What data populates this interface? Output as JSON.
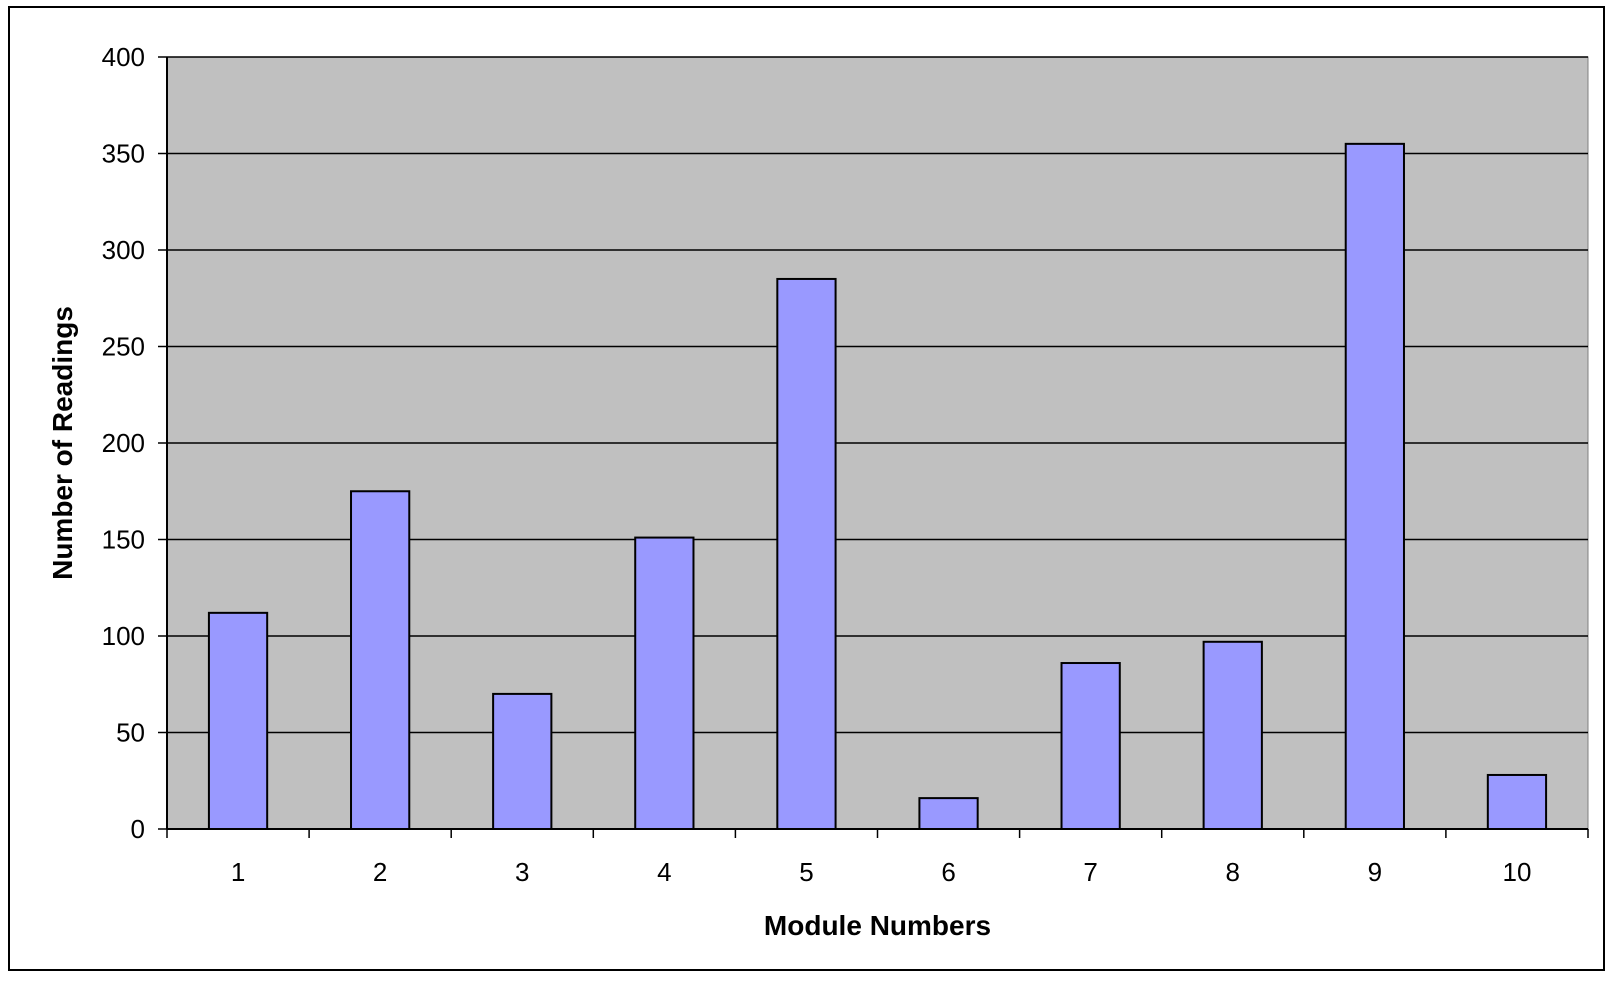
{
  "chart_data": {
    "type": "bar",
    "categories": [
      "1",
      "2",
      "3",
      "4",
      "5",
      "6",
      "7",
      "8",
      "9",
      "10"
    ],
    "values": [
      112,
      175,
      70,
      151,
      285,
      16,
      86,
      97,
      355,
      28
    ],
    "title": "",
    "xlabel": "Module Numbers",
    "ylabel": "Number of Readings",
    "ylim": [
      0,
      400
    ],
    "yticks": [
      "0",
      "50",
      "100",
      "150",
      "200",
      "250",
      "300",
      "350",
      "400"
    ],
    "grid": true,
    "legend": "none",
    "colors": {
      "bar_fill": "#9999ff",
      "bar_stroke": "#000000",
      "plot_background": "#c0c0c0",
      "gridline": "#000000"
    }
  }
}
